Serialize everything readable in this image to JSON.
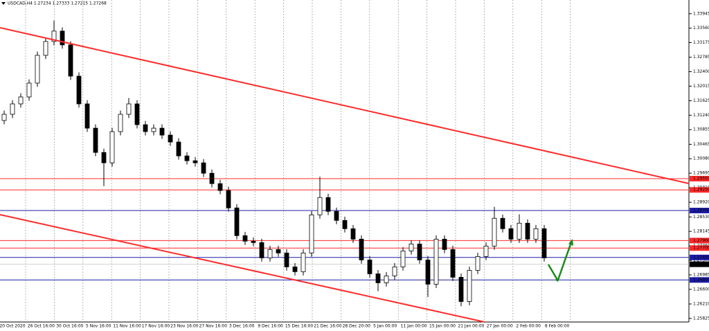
{
  "chart_data": {
    "type": "candlestick",
    "title": "USDCAD,H4  1.27234 1.27333 1.27215 1.27268",
    "open": [
      1.311,
      1.31265,
      1.31542,
      1.31727,
      1.32096,
      1.32836,
      1.33205,
      1.33482,
      1.33113,
      1.32281,
      1.31542,
      1.30895,
      1.30248,
      1.29971,
      1.30803,
      1.31265,
      1.31542,
      1.30988,
      1.30803,
      1.30895,
      1.3071,
      1.30526,
      1.30156,
      1.30027,
      1.29971,
      1.29694,
      1.29417,
      1.29234,
      1.2877,
      1.28031,
      1.27883,
      1.27846,
      1.27439,
      1.27661,
      1.27569,
      1.27199,
      1.2707,
      1.27569,
      1.28585,
      1.29047,
      1.28678,
      1.28437,
      1.28216,
      1.27938,
      1.27384,
      1.27014,
      1.26774,
      1.26959,
      1.27199,
      1.27624,
      1.27809,
      1.27384,
      1.26737,
      1.27938,
      1.27661,
      1.26922,
      1.26275,
      1.27107,
      1.27476,
      1.27754,
      1.28493,
      1.28216,
      1.27938,
      1.28363,
      1.27938,
      1.28216
    ],
    "high": [
      1.31365,
      1.31642,
      1.31827,
      1.32196,
      1.32936,
      1.33305,
      1.3376,
      1.33582,
      1.33213,
      1.32381,
      1.31642,
      1.30995,
      1.30348,
      1.30903,
      1.31365,
      1.317,
      1.31642,
      1.31088,
      1.30995,
      1.30995,
      1.3081,
      1.30626,
      1.30256,
      1.30127,
      1.30071,
      1.29794,
      1.29517,
      1.29334,
      1.2887,
      1.28131,
      1.27983,
      1.27946,
      1.27761,
      1.27761,
      1.27669,
      1.27299,
      1.27669,
      1.28685,
      1.296,
      1.29147,
      1.28778,
      1.28537,
      1.28316,
      1.28038,
      1.27484,
      1.27114,
      1.27059,
      1.27299,
      1.27724,
      1.27909,
      1.27909,
      1.27484,
      1.28038,
      1.28038,
      1.27761,
      1.27022,
      1.27207,
      1.27576,
      1.27854,
      1.288,
      1.28593,
      1.28316,
      1.286,
      1.28463,
      1.28316,
      1.28316
    ],
    "low": [
      1.31,
      1.31165,
      1.31442,
      1.31627,
      1.31996,
      1.32736,
      1.33105,
      1.33013,
      1.32181,
      1.31442,
      1.30795,
      1.30148,
      1.2935,
      1.29871,
      1.30703,
      1.31165,
      1.30888,
      1.30703,
      1.30703,
      1.3061,
      1.30426,
      1.30056,
      1.29927,
      1.29871,
      1.29594,
      1.29317,
      1.29134,
      1.2867,
      1.27931,
      1.27783,
      1.27746,
      1.27339,
      1.27339,
      1.27469,
      1.27099,
      1.2697,
      1.2697,
      1.27469,
      1.28485,
      1.28578,
      1.28337,
      1.28116,
      1.27838,
      1.27284,
      1.26914,
      1.2655,
      1.26674,
      1.26859,
      1.27099,
      1.27524,
      1.27284,
      1.264,
      1.26637,
      1.27561,
      1.26822,
      1.2615,
      1.26175,
      1.27007,
      1.27376,
      1.27654,
      1.28116,
      1.27838,
      1.27838,
      1.27838,
      1.27838,
      1.27339
    ],
    "close": [
      1.31265,
      1.31542,
      1.31727,
      1.32096,
      1.32836,
      1.33205,
      1.33482,
      1.33113,
      1.32281,
      1.31542,
      1.30895,
      1.30248,
      1.29971,
      1.30803,
      1.31265,
      1.31542,
      1.30988,
      1.30803,
      1.30895,
      1.3071,
      1.30526,
      1.30156,
      1.30027,
      1.29971,
      1.29694,
      1.29417,
      1.29234,
      1.2877,
      1.28031,
      1.27883,
      1.27846,
      1.27439,
      1.27661,
      1.27569,
      1.27199,
      1.2707,
      1.27569,
      1.28585,
      1.29047,
      1.28678,
      1.28437,
      1.28216,
      1.27938,
      1.27384,
      1.27014,
      1.26774,
      1.26959,
      1.27199,
      1.27624,
      1.27809,
      1.27384,
      1.26737,
      1.27938,
      1.27661,
      1.26922,
      1.26275,
      1.27107,
      1.27476,
      1.27754,
      1.28493,
      1.28216,
      1.27938,
      1.28363,
      1.27938,
      1.28216,
      1.27439
    ],
    "ylim": [
      1.2573,
      1.3431
    ],
    "yticks": [
      1.33945,
      {
        "value": 1.3356,
        "label": "1.33560"
      },
      1.33175,
      1.32785,
      {
        "value": 1.324,
        "label": "1.32400"
      },
      1.32015,
      1.31625,
      {
        "value": 1.3124,
        "label": "1.31240"
      },
      1.30855,
      1.30465,
      {
        "value": 1.3008,
        "label": "1.30080"
      },
      1.29695,
      {
        "value": 1.2931,
        "label": "1.29310"
      },
      {
        "value": 1.2892,
        "label": "1.28920"
      },
      {
        "value": 1.2853,
        "label": "1.28530"
      },
      1.28145,
      {
        "value": 1.2776,
        "label": "1.27760"
      },
      {
        "value": 1.2737,
        "label": "1.27370"
      },
      1.26985,
      {
        "value": 1.266,
        "label": "1.26600"
      },
      {
        "value": 1.2621,
        "label": "1.26210"
      },
      1.25825
    ],
    "levels": [
      {
        "value": 1.2955,
        "label": "1.29550",
        "color": "#ff2a2a"
      },
      {
        "value": 1.2925,
        "label": "1.29250",
        "color": "#ff2a2a"
      },
      {
        "value": 1.287,
        "label": "1.28700",
        "color": "#1c1ca8"
      },
      {
        "value": 1.279,
        "label": "1.27900",
        "color": "#ff2a2a"
      },
      {
        "value": 1.277,
        "label": "1.27700",
        "color": "#ff2a2a"
      },
      {
        "value": 1.2745,
        "label": "1.27450",
        "color": "#1c1ca8"
      },
      {
        "value": 1.2685,
        "label": "1.26850",
        "color": "#1c1ca8"
      }
    ],
    "current_price": 1.27268,
    "x_labels": [
      "20 Oct 2020",
      "26 Oct 16:00",
      "30 Oct 16:00",
      "5 Nov 16:00",
      "11 Nov 16:00",
      "17 Nov 16:00",
      "23 Nov 16:00",
      "27 Nov 16:00",
      "3 Dec 16:00",
      "9 Dec 16:00",
      "15 Dec 16:00",
      "21 Dec 16:00",
      "28 Dec 20:00",
      "5 Jan 00:00",
      "11 Jan 00:00",
      "15 Jan 00:00",
      "21 Jan 00:00",
      "27 Jan 00:00",
      "2 Feb 00:00",
      "8 Feb 00:00"
    ]
  }
}
